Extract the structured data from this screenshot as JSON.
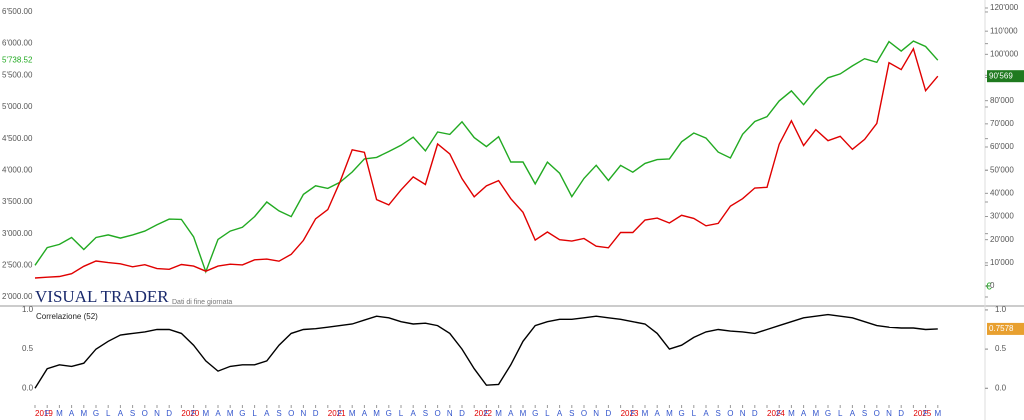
{
  "brand": {
    "name": "VISUAL TRADER",
    "note": "Dati di fine giornata",
    "currency": "€"
  },
  "chart_data": [
    {
      "type": "line",
      "categories": [
        "2019",
        "F",
        "M",
        "A",
        "M",
        "G",
        "L",
        "A",
        "S",
        "O",
        "N",
        "D",
        "2020",
        "F",
        "M",
        "A",
        "M",
        "G",
        "L",
        "A",
        "S",
        "O",
        "N",
        "D",
        "2021",
        "F",
        "M",
        "A",
        "M",
        "G",
        "L",
        "A",
        "S",
        "O",
        "N",
        "D",
        "2022",
        "F",
        "M",
        "A",
        "M",
        "G",
        "L",
        "A",
        "S",
        "O",
        "N",
        "D",
        "2023",
        "F",
        "M",
        "A",
        "M",
        "G",
        "L",
        "A",
        "S",
        "O",
        "N",
        "D",
        "2024",
        "F",
        "M",
        "A",
        "M",
        "G",
        "L",
        "A",
        "S",
        "O",
        "N",
        "D",
        "2025",
        "F",
        "M"
      ],
      "series": [
        {
          "color": "#22aa22",
          "axis": "y",
          "last": {
            "value": 5738.52,
            "label": "5'738.52"
          },
          "values": [
            2500,
            2780,
            2830,
            2940,
            2750,
            2940,
            2980,
            2930,
            2980,
            3040,
            3140,
            3230,
            3225,
            2950,
            2400,
            2910,
            3040,
            3100,
            3270,
            3500,
            3360,
            3270,
            3620,
            3756,
            3714,
            3811,
            3973,
            4181,
            4204,
            4297,
            4395,
            4523,
            4307,
            4605,
            4567,
            4766,
            4516,
            4374,
            4530,
            4132,
            4132,
            3785,
            4130,
            3955,
            3585,
            3872,
            4080,
            3840,
            4077,
            3970,
            4109,
            4169,
            4180,
            4450,
            4589,
            4508,
            4288,
            4194,
            4568,
            4770,
            4846,
            5096,
            5254,
            5036,
            5278,
            5460,
            5522,
            5648,
            5762,
            5705,
            6032,
            5882,
            6040,
            5955,
            5738.52
          ]
        },
        {
          "color": "#e00000",
          "axis": "y2",
          "last": {
            "value": 90569,
            "label": "90'569"
          },
          "values": [
            3450,
            3800,
            4100,
            5300,
            8500,
            10800,
            10100,
            9600,
            8300,
            9200,
            7500,
            7200,
            9300,
            8600,
            6400,
            8600,
            9400,
            9100,
            11300,
            11600,
            10700,
            13700,
            19700,
            29000,
            33000,
            45000,
            58800,
            57700,
            37300,
            35000,
            41500,
            47100,
            43800,
            61300,
            57000,
            46300,
            38500,
            43200,
            45500,
            37700,
            31800,
            19800,
            23300,
            20000,
            19400,
            20500,
            17200,
            16500,
            23100,
            23100,
            28500,
            29300,
            27200,
            30500,
            29200,
            26000,
            27000,
            34500,
            37700,
            42300,
            42600,
            61200,
            71300,
            60600,
            67500,
            62700,
            64600,
            59000,
            63300,
            70200,
            96400,
            93400,
            102400,
            84300,
            90569
          ]
        }
      ],
      "ylim": [
        2000,
        6610
      ],
      "yticks": [
        {
          "value": 2000,
          "label": "2'000.00"
        },
        {
          "value": 2500,
          "label": "2'500.00"
        },
        {
          "value": 3000,
          "label": "3'000.00"
        },
        {
          "value": 3500,
          "label": "3'500.00"
        },
        {
          "value": 4000,
          "label": "4'000.00"
        },
        {
          "value": 4500,
          "label": "4'500.00"
        },
        {
          "value": 5000,
          "label": "5'000.00"
        },
        {
          "value": 5500,
          "label": "5'500.00"
        },
        {
          "value": 6000,
          "label": "6'000.00"
        },
        {
          "value": 6500,
          "label": "6'500.00"
        }
      ],
      "y2lim": [
        -4750,
        121300
      ],
      "y2ticks": [
        0,
        {
          "value": 10000,
          "label": "10'000"
        },
        {
          "value": 20000,
          "label": "20'000"
        },
        {
          "value": 30000,
          "label": "30'000"
        },
        {
          "value": 40000,
          "label": "40'000"
        },
        {
          "value": 50000,
          "label": "50'000"
        },
        {
          "value": 60000,
          "label": "60'000"
        },
        {
          "value": 70000,
          "label": "70'000"
        },
        {
          "value": 80000,
          "label": "80'000"
        },
        {
          "value": 90000,
          "label": "90'000"
        },
        {
          "value": 100000,
          "label": "100'000"
        },
        {
          "value": 110000,
          "label": "110'000"
        },
        {
          "value": 120000,
          "label": "120'000"
        }
      ]
    },
    {
      "type": "line",
      "title": "Correlazione (52)",
      "series": [
        {
          "color": "#000000",
          "last": {
            "value": 0.7578,
            "label": "0.7578"
          },
          "values": [
            0.0,
            0.25,
            0.3,
            0.28,
            0.32,
            0.5,
            0.6,
            0.68,
            0.7,
            0.72,
            0.75,
            0.75,
            0.7,
            0.55,
            0.35,
            0.22,
            0.28,
            0.3,
            0.3,
            0.35,
            0.55,
            0.7,
            0.75,
            0.76,
            0.78,
            0.8,
            0.82,
            0.87,
            0.92,
            0.9,
            0.85,
            0.82,
            0.83,
            0.8,
            0.7,
            0.5,
            0.25,
            0.04,
            0.05,
            0.3,
            0.6,
            0.8,
            0.85,
            0.88,
            0.88,
            0.9,
            0.92,
            0.9,
            0.88,
            0.85,
            0.82,
            0.7,
            0.5,
            0.55,
            0.65,
            0.72,
            0.75,
            0.73,
            0.72,
            0.7,
            0.75,
            0.8,
            0.85,
            0.9,
            0.92,
            0.94,
            0.92,
            0.9,
            0.85,
            0.8,
            0.78,
            0.77,
            0.77,
            0.75,
            0.7578
          ]
        }
      ],
      "ylim": [
        -0.2,
        1.05
      ],
      "yticks": [
        {
          "value": 0,
          "label": "0.0"
        },
        {
          "value": 0.5,
          "label": "0.5"
        },
        {
          "value": 1,
          "label": "1.0"
        }
      ]
    }
  ]
}
